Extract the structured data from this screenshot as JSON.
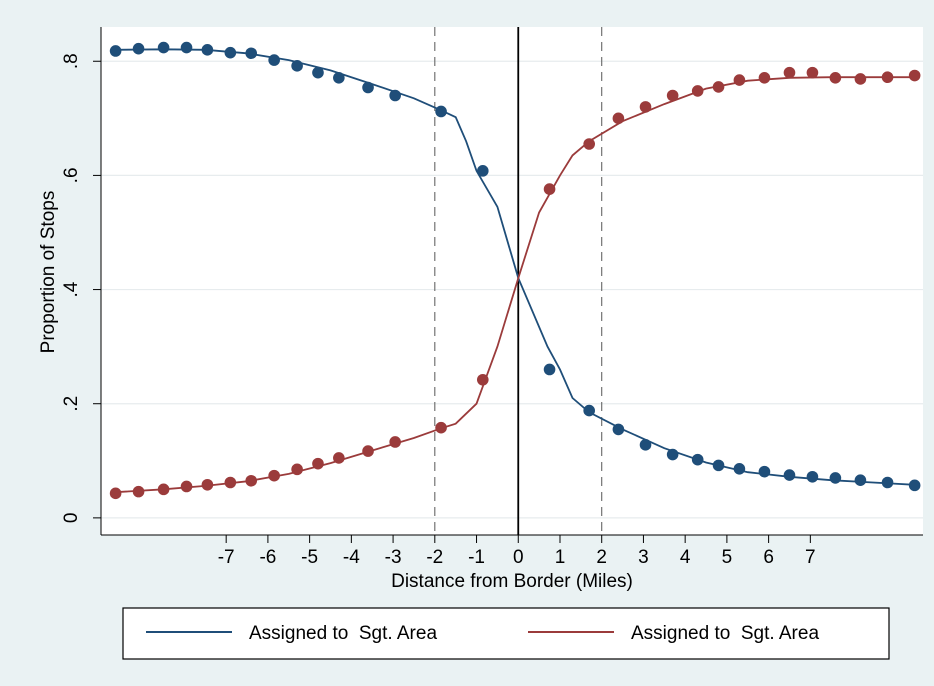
{
  "chart_data": {
    "type": "scatter",
    "xlabel": "Distance from Border (Miles)",
    "ylabel": "Proportion of Stops",
    "xlim": [
      -10.0,
      9.7
    ],
    "ylim": [
      -0.03,
      0.86
    ],
    "x_ticks": [
      -7,
      -6,
      -5,
      -4,
      -3,
      -2,
      -1,
      0,
      1,
      2,
      3,
      4,
      5,
      6,
      7
    ],
    "y_ticks": [
      0,
      0.2,
      0.4,
      0.6,
      0.8
    ],
    "y_tick_labels": [
      "0",
      ".2",
      ".4",
      ".6",
      ".8"
    ],
    "grid": true,
    "vertical_lines": [
      {
        "x": -2,
        "style": "dashed"
      },
      {
        "x": 0,
        "style": "solid"
      },
      {
        "x": 2,
        "style": "dashed"
      }
    ],
    "legend_position": "bottom",
    "series": [
      {
        "name": "Assigned to  Sgt. Area",
        "color": "#1f4e79",
        "points": [
          [
            -9.65,
            0.818
          ],
          [
            -9.1,
            0.822
          ],
          [
            -8.5,
            0.824
          ],
          [
            -7.95,
            0.824
          ],
          [
            -7.45,
            0.82
          ],
          [
            -6.9,
            0.815
          ],
          [
            -6.4,
            0.814
          ],
          [
            -5.85,
            0.802
          ],
          [
            -5.3,
            0.792
          ],
          [
            -4.8,
            0.78
          ],
          [
            -4.3,
            0.771
          ],
          [
            -3.6,
            0.754
          ],
          [
            -2.95,
            0.74
          ],
          [
            -1.85,
            0.712
          ],
          [
            -0.85,
            0.608
          ],
          [
            0.75,
            0.26
          ],
          [
            1.7,
            0.188
          ],
          [
            2.4,
            0.155
          ],
          [
            3.05,
            0.128
          ],
          [
            3.7,
            0.111
          ],
          [
            4.3,
            0.102
          ],
          [
            4.8,
            0.092
          ],
          [
            5.3,
            0.086
          ],
          [
            5.9,
            0.081
          ],
          [
            6.5,
            0.075
          ],
          [
            7.05,
            0.072
          ],
          [
            7.6,
            0.07
          ],
          [
            8.2,
            0.066
          ],
          [
            8.85,
            0.062
          ],
          [
            9.5,
            0.057
          ]
        ],
        "fit": [
          [
            -9.65,
            0.82
          ],
          [
            -8.5,
            0.821
          ],
          [
            -7.5,
            0.82
          ],
          [
            -6.5,
            0.814
          ],
          [
            -5.5,
            0.802
          ],
          [
            -4.5,
            0.784
          ],
          [
            -3.5,
            0.76
          ],
          [
            -2.5,
            0.735
          ],
          [
            -1.85,
            0.714
          ],
          [
            -1.5,
            0.702
          ],
          [
            -1.25,
            0.66
          ],
          [
            -1.0,
            0.608
          ],
          [
            -0.5,
            0.545
          ],
          [
            0.0,
            0.42
          ],
          [
            0.7,
            0.3
          ],
          [
            1.0,
            0.26
          ],
          [
            1.3,
            0.21
          ],
          [
            1.7,
            0.185
          ],
          [
            2.5,
            0.155
          ],
          [
            3.5,
            0.122
          ],
          [
            4.5,
            0.097
          ],
          [
            5.5,
            0.08
          ],
          [
            6.5,
            0.072
          ],
          [
            7.5,
            0.066
          ],
          [
            8.5,
            0.062
          ],
          [
            9.5,
            0.058
          ]
        ]
      },
      {
        "name": "Assigned to  Sgt. Area",
        "color": "#9b3b3b",
        "points": [
          [
            -9.65,
            0.043
          ],
          [
            -9.1,
            0.046
          ],
          [
            -8.5,
            0.05
          ],
          [
            -7.95,
            0.055
          ],
          [
            -7.45,
            0.058
          ],
          [
            -6.9,
            0.062
          ],
          [
            -6.4,
            0.065
          ],
          [
            -5.85,
            0.074
          ],
          [
            -5.3,
            0.085
          ],
          [
            -4.8,
            0.095
          ],
          [
            -4.3,
            0.105
          ],
          [
            -3.6,
            0.117
          ],
          [
            -2.95,
            0.133
          ],
          [
            -1.85,
            0.158
          ],
          [
            -0.85,
            0.242
          ],
          [
            0.75,
            0.576
          ],
          [
            1.7,
            0.655
          ],
          [
            2.4,
            0.7
          ],
          [
            3.05,
            0.72
          ],
          [
            3.7,
            0.74
          ],
          [
            4.3,
            0.748
          ],
          [
            4.8,
            0.755
          ],
          [
            5.3,
            0.767
          ],
          [
            5.9,
            0.771
          ],
          [
            6.5,
            0.78
          ],
          [
            7.05,
            0.78
          ],
          [
            7.6,
            0.771
          ],
          [
            8.2,
            0.769
          ],
          [
            8.85,
            0.772
          ],
          [
            9.5,
            0.775
          ]
        ],
        "fit": [
          [
            -9.65,
            0.045
          ],
          [
            -8.5,
            0.05
          ],
          [
            -7.5,
            0.056
          ],
          [
            -6.5,
            0.064
          ],
          [
            -5.5,
            0.077
          ],
          [
            -4.5,
            0.096
          ],
          [
            -3.5,
            0.118
          ],
          [
            -2.5,
            0.14
          ],
          [
            -1.85,
            0.157
          ],
          [
            -1.5,
            0.165
          ],
          [
            -1.0,
            0.2
          ],
          [
            -0.5,
            0.3
          ],
          [
            0.0,
            0.42
          ],
          [
            0.5,
            0.535
          ],
          [
            1.0,
            0.6
          ],
          [
            1.3,
            0.635
          ],
          [
            1.7,
            0.66
          ],
          [
            2.5,
            0.695
          ],
          [
            3.5,
            0.725
          ],
          [
            4.5,
            0.752
          ],
          [
            5.5,
            0.766
          ],
          [
            6.5,
            0.771
          ],
          [
            7.5,
            0.772
          ],
          [
            8.5,
            0.772
          ],
          [
            9.5,
            0.772
          ]
        ]
      }
    ]
  }
}
